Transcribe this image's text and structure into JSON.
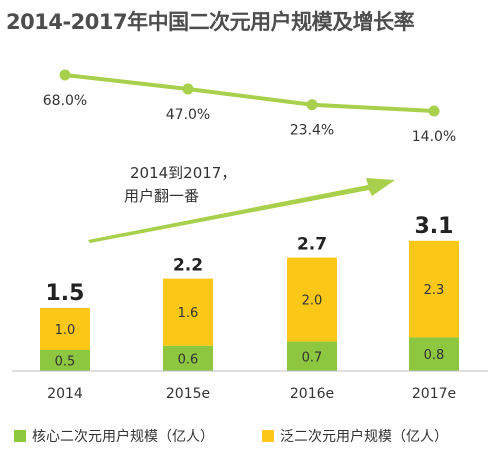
{
  "colors": {
    "core": "#8dc63f",
    "general": "#fcc817",
    "trend_line": "#a9d04c",
    "arrow": "#a9d04c"
  },
  "chart_data": {
    "type": "bar",
    "title": "2014-2017年中国二次元用户规模及增长率",
    "categories": [
      "2014",
      "2015e",
      "2016e",
      "2017e"
    ],
    "series": [
      {
        "name": "核心二次元用户规模（亿人）",
        "values": [
          0.5,
          0.6,
          0.7,
          0.8
        ]
      },
      {
        "name": "泛二次元用户规模（亿人）",
        "values": [
          1.0,
          1.6,
          2.0,
          2.3
        ]
      }
    ],
    "value_labels": {
      "core": [
        "0.5",
        "0.6",
        "0.7",
        "0.8"
      ],
      "general": [
        "1.0",
        "1.6",
        "2.0",
        "2.3"
      ]
    },
    "totals": [
      1.5,
      2.2,
      2.7,
      3.1
    ],
    "total_labels": [
      "1.5",
      "2.2",
      "2.7",
      "3.1"
    ],
    "growth_rate": {
      "type": "line",
      "values": [
        68.0,
        47.0,
        23.4,
        14.0
      ],
      "labels": [
        "68.0%",
        "47.0%",
        "23.4%",
        "14.0%"
      ]
    },
    "annotation": {
      "line1": "2014到2017，",
      "line2": "用户翻一番"
    },
    "ylim": [
      0,
      3.5
    ],
    "legend_position": "bottom",
    "grid": false
  }
}
